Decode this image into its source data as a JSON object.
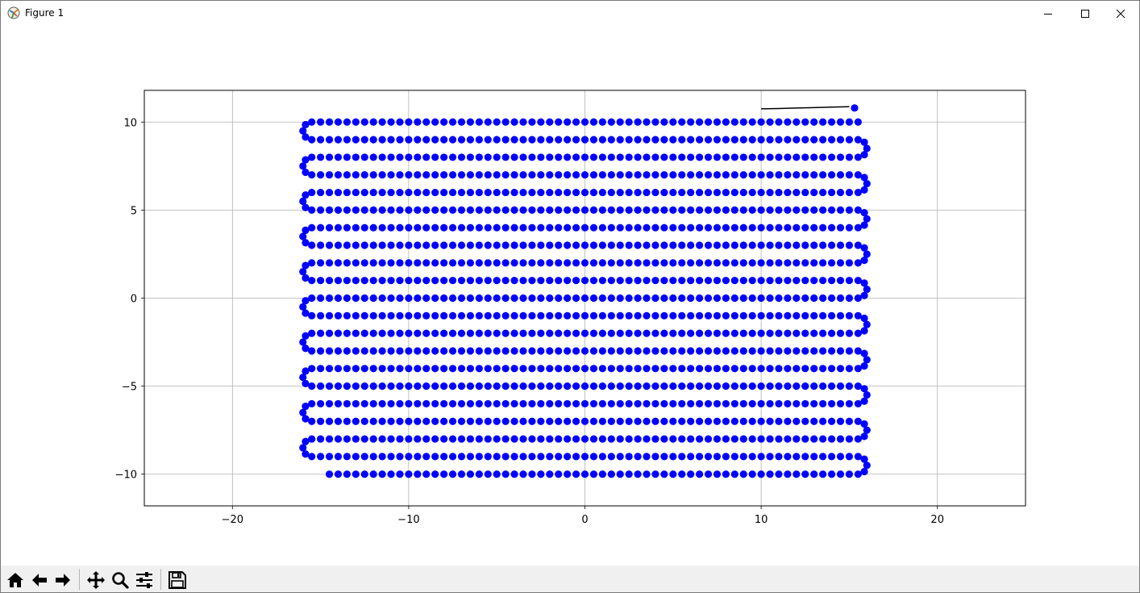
{
  "window": {
    "title": "Figure 1"
  },
  "toolbar": {
    "buttons": [
      "home-icon",
      "back-icon",
      "forward-icon",
      "pan-icon",
      "zoom-icon",
      "configure-icon",
      "save-icon"
    ]
  },
  "chart_data": {
    "type": "scatter",
    "title": "",
    "xlabel": "",
    "ylabel": "",
    "xlim": [
      -25,
      25
    ],
    "ylim": [
      -11.8,
      11.8
    ],
    "xticks": [
      -20,
      -10,
      0,
      10,
      20
    ],
    "xtick_labels": [
      "−20",
      "−10",
      "0",
      "10",
      "20"
    ],
    "yticks": [
      -10,
      -5,
      0,
      5,
      10
    ],
    "ytick_labels": [
      "−10",
      "−5",
      "0",
      "5",
      "10"
    ],
    "grid": true,
    "series": [
      {
        "kind": "scatter",
        "color": "#0000ff",
        "pattern": "boustrophedon",
        "row_y": [
          -10,
          -9,
          -8,
          -7,
          -6,
          -5,
          -4,
          -3,
          -2,
          -1,
          0,
          1,
          2,
          3,
          4,
          5,
          6,
          7,
          8,
          9,
          10
        ],
        "x_min": -15.5,
        "x_max": 15.5,
        "first_row_start_x": -14.5,
        "first_row_direction": "right",
        "point_spacing": 0.5,
        "end_point": [
          15.3,
          10.8
        ]
      },
      {
        "kind": "line",
        "color": "#000000",
        "x": [
          10.0,
          11.0,
          12.0,
          13.0,
          14.0,
          15.0
        ],
        "y": [
          10.75,
          10.77,
          10.8,
          10.82,
          10.85,
          10.87
        ]
      }
    ]
  }
}
